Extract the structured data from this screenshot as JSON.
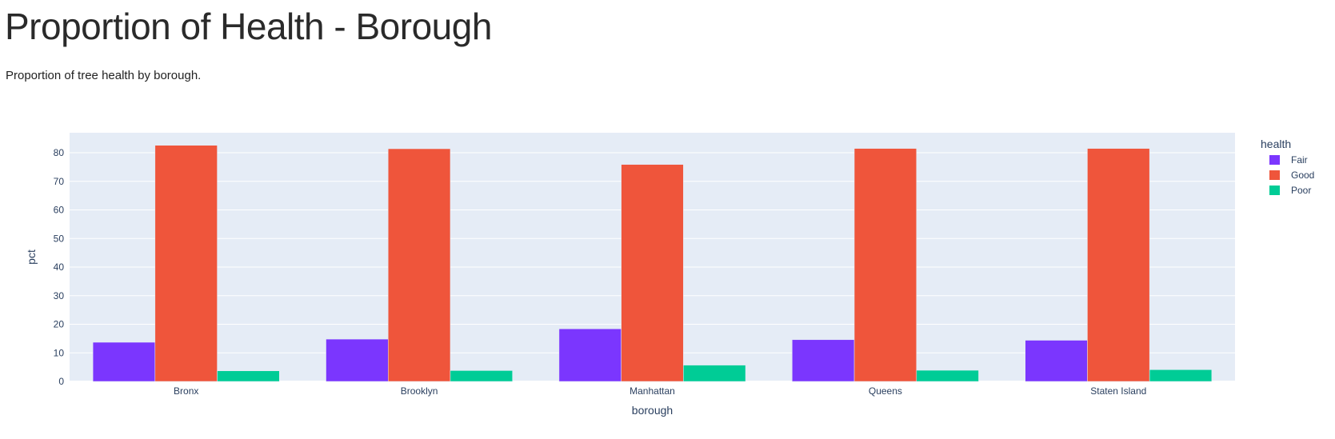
{
  "page": {
    "title": "Proportion of Health - Borough",
    "subtitle": "Proportion of tree health by borough."
  },
  "chart_data": {
    "type": "bar",
    "barmode": "group",
    "categories": [
      "Bronx",
      "Brooklyn",
      "Manhattan",
      "Queens",
      "Staten Island"
    ],
    "series": [
      {
        "name": "Fair",
        "color": "#7b36fe",
        "values": [
          13.7,
          14.8,
          18.4,
          14.6,
          14.4
        ]
      },
      {
        "name": "Good",
        "color": "#ef553b",
        "values": [
          82.6,
          81.4,
          75.9,
          81.5,
          81.5
        ]
      },
      {
        "name": "Poor",
        "color": "#00cc96",
        "values": [
          3.7,
          3.8,
          5.7,
          3.9,
          4.1
        ]
      }
    ],
    "xlabel": "borough",
    "ylabel": "pct",
    "ylim": [
      0,
      87
    ],
    "yticks": [
      0,
      10,
      20,
      30,
      40,
      50,
      60,
      70,
      80
    ],
    "grid": true,
    "plot_background": "#e5ecf6",
    "legend": {
      "title": "health",
      "placement": "right"
    }
  }
}
